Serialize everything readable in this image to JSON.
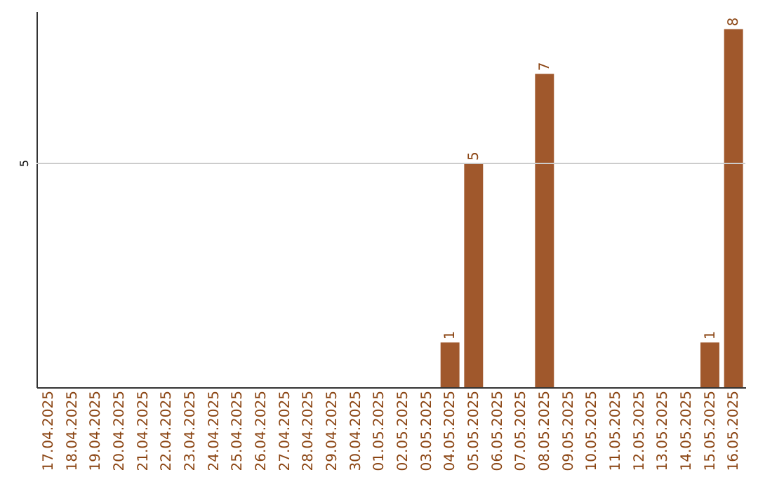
{
  "chart_data": {
    "type": "bar",
    "categories": [
      "17.04.2025",
      "18.04.2025",
      "19.04.2025",
      "20.04.2025",
      "21.04.2025",
      "22.04.2025",
      "23.04.2025",
      "24.04.2025",
      "25.04.2025",
      "26.04.2025",
      "27.04.2025",
      "28.04.2025",
      "29.04.2025",
      "30.04.2025",
      "01.05.2025",
      "02.05.2025",
      "03.05.2025",
      "04.05.2025",
      "05.05.2025",
      "06.05.2025",
      "07.05.2025",
      "08.05.2025",
      "09.05.2025",
      "10.05.2025",
      "11.05.2025",
      "12.05.2025",
      "13.05.2025",
      "14.05.2025",
      "15.05.2025",
      "16.05.2025"
    ],
    "values": [
      null,
      null,
      null,
      null,
      null,
      null,
      null,
      null,
      null,
      null,
      null,
      null,
      null,
      null,
      null,
      null,
      null,
      1,
      5,
      null,
      null,
      7,
      null,
      null,
      null,
      null,
      null,
      null,
      1,
      8
    ],
    "data_labels": true,
    "ylim": [
      0,
      8.4
    ],
    "color": "#a0582c",
    "ref_lines": [
      {
        "axis": "y",
        "value": 5,
        "label": "5",
        "color": "#cccccc"
      }
    ]
  }
}
